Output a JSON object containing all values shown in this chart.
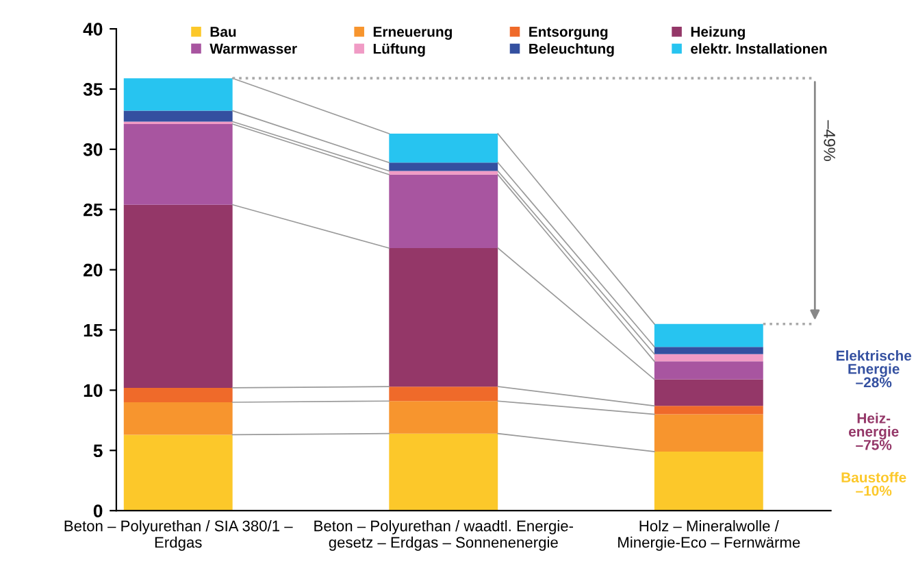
{
  "chart_data": {
    "type": "bar",
    "stacked": true,
    "categories": [
      "Beton – Polyurethan / SIA 380/1 –\nErdgas",
      "Beton – Polyurethan / waadtl. Energie-\ngesetz – Erdgas – Sonnenenergie",
      "Holz – Mineralwolle /\nMinergie-Eco – Fernwärme"
    ],
    "series": [
      {
        "name": "Bau",
        "color": "#fcc82a",
        "values": [
          6.3,
          6.4,
          4.9
        ]
      },
      {
        "name": "Erneuerung",
        "color": "#f7952e",
        "values": [
          2.7,
          2.7,
          3.1
        ]
      },
      {
        "name": "Entsorgung",
        "color": "#ef6a2a",
        "values": [
          1.2,
          1.2,
          0.7
        ]
      },
      {
        "name": "Heizung",
        "color": "#943768",
        "values": [
          15.2,
          11.5,
          2.2
        ]
      },
      {
        "name": "Warmwasser",
        "color": "#a855a0",
        "values": [
          6.7,
          6.1,
          1.5
        ]
      },
      {
        "name": "Lüftung",
        "color": "#f09bc5",
        "values": [
          0.2,
          0.3,
          0.6
        ]
      },
      {
        "name": "Beleuchtung",
        "color": "#3450a0",
        "values": [
          0.9,
          0.7,
          0.6
        ]
      },
      {
        "name": "elektr. Installationen",
        "color": "#27c4f0",
        "values": [
          2.7,
          2.4,
          1.9
        ]
      }
    ],
    "ylim": [
      0,
      40
    ],
    "yticks": [
      0,
      5,
      10,
      15,
      20,
      25,
      30,
      35,
      40
    ],
    "ref_lines": [
      {
        "axis": "y",
        "value": 35.9,
        "color": "#aaaaaa",
        "line_style": "dotted"
      }
    ],
    "grid": false,
    "legend": "top",
    "annotations": [
      "–49%",
      "Elektrische\nEnergie\n–28%",
      "Heiz-\nenergie\n–75%",
      "Baustoffe\n–10%"
    ]
  }
}
